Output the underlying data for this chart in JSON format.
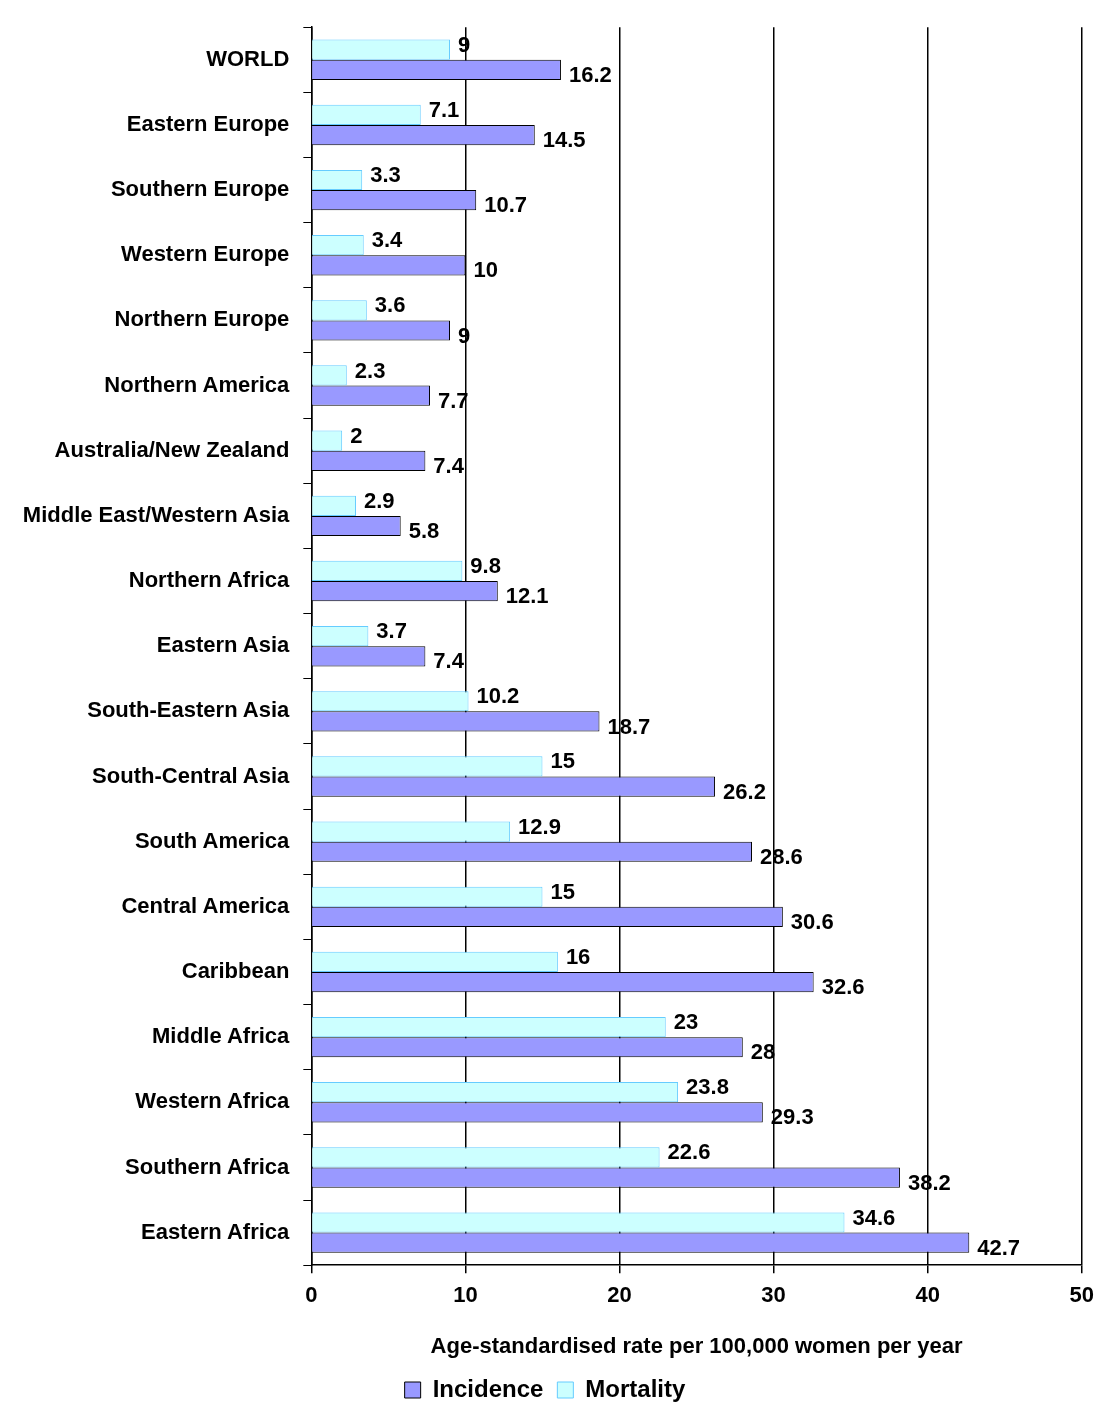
{
  "chart_data": {
    "type": "bar",
    "orientation": "horizontal",
    "xlabel": "Age-standardised rate per 100,000 women per year",
    "categories": [
      "WORLD",
      "Eastern Europe",
      "Southern Europe",
      "Western Europe",
      "Northern Europe",
      "Northern America",
      "Australia/New Zealand",
      "Middle East/Western Asia",
      "Northern Africa",
      "Eastern Asia",
      "South-Eastern Asia",
      "South-Central Asia",
      "South America",
      "Central America",
      "Caribbean",
      "Middle Africa",
      "Western Africa",
      "Southern Africa",
      "Eastern Africa"
    ],
    "series": [
      {
        "name": "Incidence",
        "color": "#9999ff",
        "values": [
          16.2,
          14.5,
          10.7,
          10,
          9,
          7.7,
          7.4,
          5.8,
          12.1,
          7.4,
          18.7,
          26.2,
          28.6,
          30.6,
          32.6,
          28,
          29.3,
          38.2,
          42.7
        ]
      },
      {
        "name": "Mortality",
        "color": "#ccffff",
        "values": [
          9,
          7.1,
          3.3,
          3.4,
          3.6,
          2.3,
          2,
          2.9,
          9.8,
          3.7,
          10.2,
          15,
          12.9,
          15,
          16,
          23,
          23.8,
          22.6,
          34.6
        ]
      }
    ],
    "xlim": [
      0,
      50
    ],
    "xticks": [
      0,
      10,
      20,
      30,
      40,
      50
    ],
    "grid": "x",
    "legend": "bottom",
    "data_labels": true
  }
}
